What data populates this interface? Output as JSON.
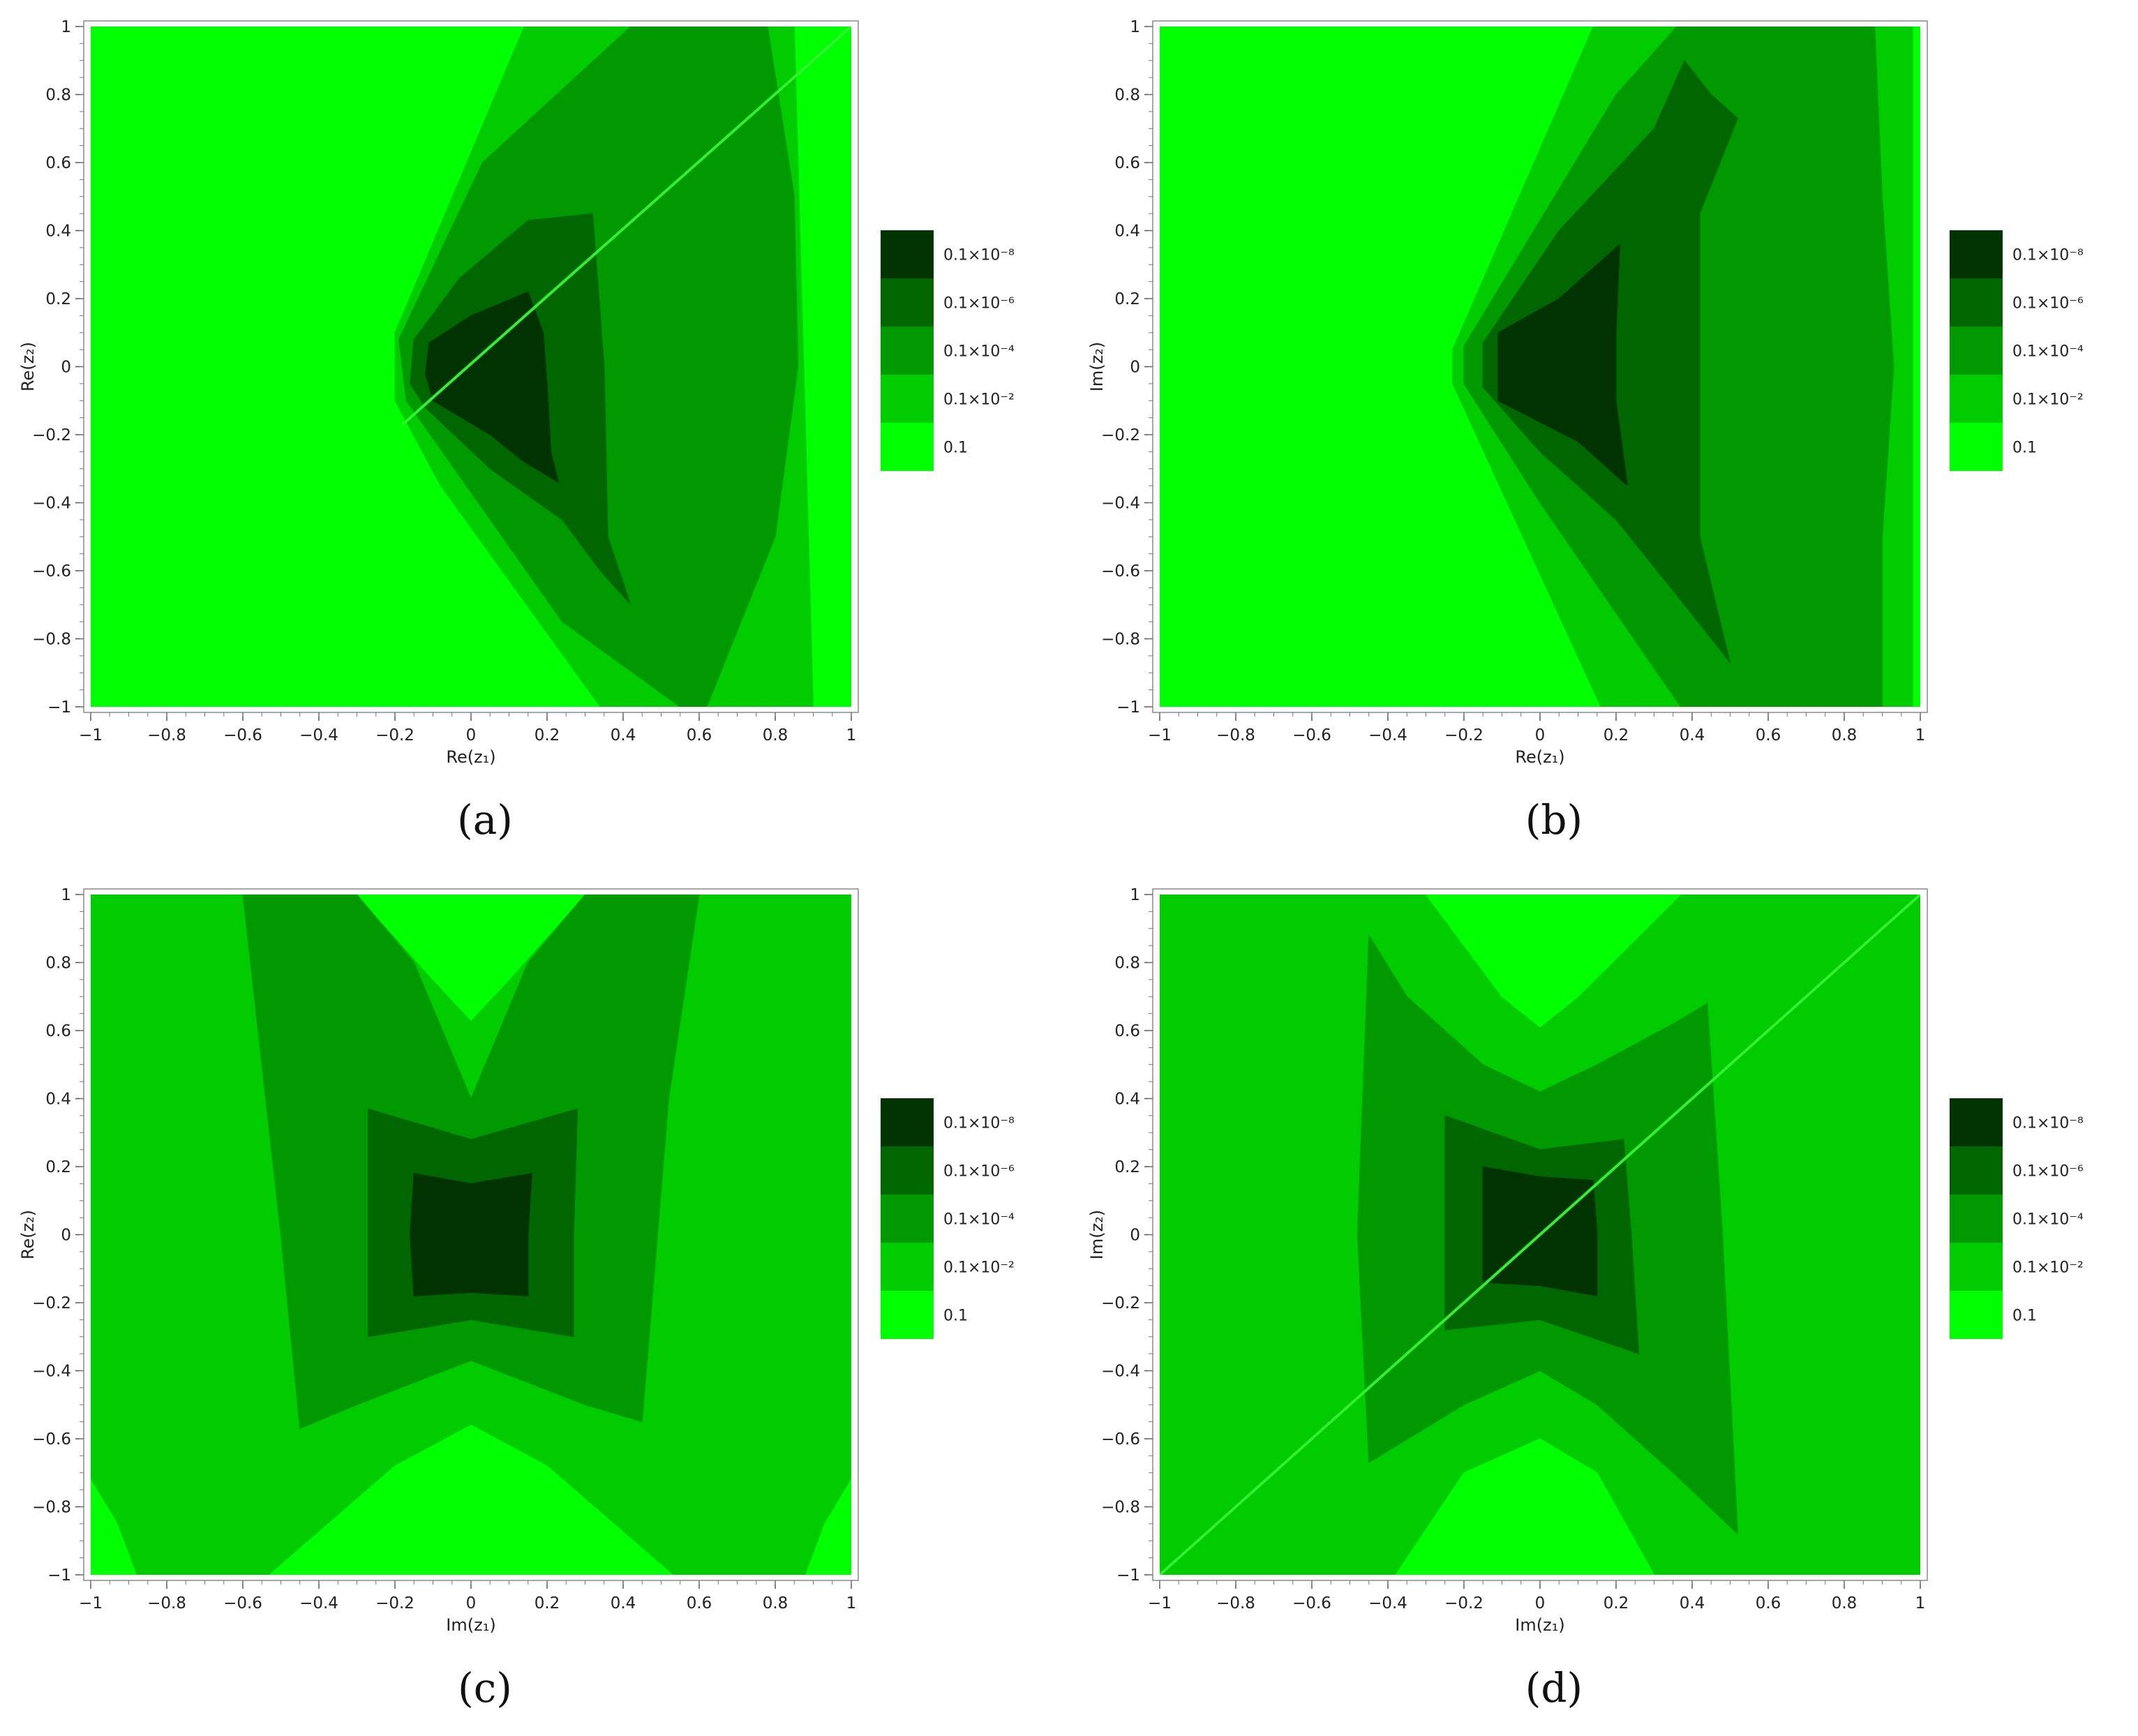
{
  "level_colors": [
    "#00ff00",
    "#00cc00",
    "#009900",
    "#006600",
    "#003300"
  ],
  "legend": {
    "items": [
      {
        "label": "0.1×10⁻⁸",
        "color": "#003300"
      },
      {
        "label": "0.1×10⁻⁶",
        "color": "#006600"
      },
      {
        "label": "0.1×10⁻⁴",
        "color": "#009900"
      },
      {
        "label": "0.1×10⁻²",
        "color": "#00cc00"
      },
      {
        "label": "0.1",
        "color": "#00ff00"
      }
    ]
  },
  "chart_data": [
    {
      "type": "heatmap",
      "caption": "(a)",
      "xlabel": "Re(z₁)",
      "ylabel": "Re(z₂)",
      "xlim": [
        -1,
        1
      ],
      "ylim": [
        -1,
        1
      ],
      "xticks": [
        "−1",
        "−0.8",
        "−0.6",
        "−0.4",
        "−0.2",
        "0",
        "0.2",
        "0.4",
        "0.6",
        "0.8",
        "1"
      ],
      "yticks": [
        "−1",
        "−0.8",
        "−0.6",
        "−0.4",
        "−0.2",
        "0",
        "0.2",
        "0.4",
        "0.6",
        "0.8",
        "1"
      ],
      "background_level": 0,
      "diagonal_line": {
        "from": [
          -0.18,
          -0.17
        ],
        "to": [
          1,
          1
        ]
      },
      "regions": [
        {
          "level": 1,
          "points": [
            [
              -0.2,
              0.1
            ],
            [
              0.14,
              1
            ],
            [
              0.85,
              1
            ],
            [
              0.9,
              -1
            ],
            [
              0.34,
              -1
            ],
            [
              -0.08,
              -0.35
            ],
            [
              -0.2,
              -0.1
            ]
          ]
        },
        {
          "level": 2,
          "points": [
            [
              -0.19,
              0.08
            ],
            [
              0.03,
              0.6
            ],
            [
              0.42,
              1
            ],
            [
              0.78,
              1
            ],
            [
              0.85,
              0.5
            ],
            [
              0.86,
              0
            ],
            [
              0.8,
              -0.5
            ],
            [
              0.62,
              -1
            ],
            [
              0.55,
              -1
            ],
            [
              0.24,
              -0.75
            ],
            [
              -0.17,
              -0.1
            ]
          ]
        },
        {
          "level": 3,
          "points": [
            [
              -0.15,
              0.08
            ],
            [
              -0.03,
              0.26
            ],
            [
              0.15,
              0.43
            ],
            [
              0.32,
              0.45
            ],
            [
              0.35,
              0
            ],
            [
              0.36,
              -0.5
            ],
            [
              0.42,
              -0.7
            ],
            [
              0.34,
              -0.6
            ],
            [
              0.24,
              -0.45
            ],
            [
              0.05,
              -0.3
            ],
            [
              -0.12,
              -0.12
            ],
            [
              -0.16,
              -0.05
            ]
          ]
        },
        {
          "level": 4,
          "points": [
            [
              -0.11,
              0.07
            ],
            [
              0.0,
              0.15
            ],
            [
              0.15,
              0.22
            ],
            [
              0.19,
              0.1
            ],
            [
              0.2,
              -0.05
            ],
            [
              0.21,
              -0.25
            ],
            [
              0.23,
              -0.34
            ],
            [
              0.14,
              -0.28
            ],
            [
              0.05,
              -0.2
            ],
            [
              -0.1,
              -0.1
            ],
            [
              -0.12,
              -0.02
            ]
          ]
        }
      ]
    },
    {
      "type": "heatmap",
      "caption": "(b)",
      "xlabel": "Re(z₁)",
      "ylabel": "Im(z₂)",
      "xlim": [
        -1,
        1
      ],
      "ylim": [
        -1,
        1
      ],
      "xticks": [
        "−1",
        "−0.8",
        "−0.6",
        "−0.4",
        "−0.2",
        "0",
        "0.2",
        "0.4",
        "0.6",
        "0.8",
        "1"
      ],
      "yticks": [
        "−1",
        "−0.8",
        "−0.6",
        "−0.4",
        "−0.2",
        "0",
        "0.2",
        "0.4",
        "0.6",
        "0.8",
        "1"
      ],
      "background_level": 0,
      "diagonal_line": null,
      "regions": [
        {
          "level": 1,
          "points": [
            [
              -0.23,
              0.05
            ],
            [
              0.14,
              1
            ],
            [
              0.98,
              1
            ],
            [
              0.98,
              -1
            ],
            [
              0.16,
              -1
            ],
            [
              -0.23,
              -0.05
            ]
          ]
        },
        {
          "level": 2,
          "points": [
            [
              -0.2,
              0.06
            ],
            [
              0.2,
              0.8
            ],
            [
              0.36,
              1
            ],
            [
              0.88,
              1
            ],
            [
              0.9,
              0.5
            ],
            [
              0.93,
              0
            ],
            [
              0.9,
              -0.5
            ],
            [
              0.9,
              -1
            ],
            [
              0.37,
              -1
            ],
            [
              0.0,
              -0.4
            ],
            [
              -0.2,
              -0.05
            ]
          ]
        },
        {
          "level": 3,
          "points": [
            [
              -0.15,
              0.07
            ],
            [
              0.05,
              0.4
            ],
            [
              0.3,
              0.7
            ],
            [
              0.38,
              0.9
            ],
            [
              0.45,
              0.8
            ],
            [
              0.52,
              0.73
            ],
            [
              0.42,
              0.45
            ],
            [
              0.42,
              0
            ],
            [
              0.42,
              -0.5
            ],
            [
              0.5,
              -0.87
            ],
            [
              0.38,
              -0.7
            ],
            [
              0.2,
              -0.45
            ],
            [
              0.0,
              -0.25
            ],
            [
              -0.15,
              -0.06
            ]
          ]
        },
        {
          "level": 4,
          "points": [
            [
              -0.11,
              0.1
            ],
            [
              0.05,
              0.2
            ],
            [
              0.21,
              0.36
            ],
            [
              0.2,
              0.1
            ],
            [
              0.2,
              -0.1
            ],
            [
              0.23,
              -0.35
            ],
            [
              0.1,
              -0.22
            ],
            [
              -0.11,
              -0.1
            ]
          ]
        }
      ]
    },
    {
      "type": "heatmap",
      "caption": "(c)",
      "xlabel": "Im(z₁)",
      "ylabel": "Re(z₂)",
      "xlim": [
        -1,
        1
      ],
      "ylim": [
        -1,
        1
      ],
      "xticks": [
        "−1",
        "−0.8",
        "−0.6",
        "−0.4",
        "−0.2",
        "0",
        "0.2",
        "0.4",
        "0.6",
        "0.8",
        "1"
      ],
      "yticks": [
        "−1",
        "−0.8",
        "−0.6",
        "−0.4",
        "−0.2",
        "0",
        "0.2",
        "0.4",
        "0.6",
        "0.8",
        "1"
      ],
      "background_level": 1,
      "diagonal_line": null,
      "regions": [
        {
          "level": 0,
          "points": [
            [
              -0.3,
              1
            ],
            [
              -0.1,
              0.75
            ],
            [
              0.0,
              0.63
            ],
            [
              0.1,
              0.75
            ],
            [
              0.3,
              1
            ]
          ]
        },
        {
          "level": 0,
          "points": [
            [
              -0.53,
              -1
            ],
            [
              -0.2,
              -0.68
            ],
            [
              0.0,
              -0.56
            ],
            [
              0.2,
              -0.68
            ],
            [
              0.53,
              -1
            ]
          ]
        },
        {
          "level": 0,
          "points": [
            [
              -1,
              -0.72
            ],
            [
              -0.93,
              -0.85
            ],
            [
              -0.88,
              -1
            ],
            [
              -1,
              -1
            ]
          ]
        },
        {
          "level": 0,
          "points": [
            [
              1,
              -0.72
            ],
            [
              0.93,
              -0.85
            ],
            [
              0.88,
              -1
            ],
            [
              1,
              -1
            ]
          ]
        },
        {
          "level": 2,
          "points": [
            [
              -0.6,
              1
            ],
            [
              -0.3,
              1
            ],
            [
              -0.15,
              0.8
            ],
            [
              0.0,
              0.4
            ],
            [
              0.15,
              0.8
            ],
            [
              0.3,
              1
            ],
            [
              0.6,
              1
            ],
            [
              0.52,
              0.4
            ],
            [
              0.45,
              -0.55
            ],
            [
              0.3,
              -0.5
            ],
            [
              0.0,
              -0.37
            ],
            [
              -0.3,
              -0.5
            ],
            [
              -0.45,
              -0.57
            ],
            [
              -0.5,
              0
            ]
          ]
        },
        {
          "level": 3,
          "points": [
            [
              -0.27,
              0.37
            ],
            [
              0.0,
              0.28
            ],
            [
              0.28,
              0.37
            ],
            [
              0.27,
              0
            ],
            [
              0.27,
              -0.3
            ],
            [
              0.0,
              -0.25
            ],
            [
              -0.27,
              -0.3
            ],
            [
              -0.27,
              0
            ]
          ]
        },
        {
          "level": 4,
          "points": [
            [
              -0.15,
              0.18
            ],
            [
              0.0,
              0.15
            ],
            [
              0.16,
              0.18
            ],
            [
              0.15,
              0
            ],
            [
              0.15,
              -0.18
            ],
            [
              0.0,
              -0.17
            ],
            [
              -0.15,
              -0.18
            ],
            [
              -0.16,
              0
            ]
          ]
        }
      ]
    },
    {
      "type": "heatmap",
      "caption": "(d)",
      "xlabel": "Im(z₁)",
      "ylabel": "Im(z₂)",
      "xlim": [
        -1,
        1
      ],
      "ylim": [
        -1,
        1
      ],
      "xticks": [
        "−1",
        "−0.8",
        "−0.6",
        "−0.4",
        "−0.2",
        "0",
        "0.2",
        "0.4",
        "0.6",
        "0.8",
        "1"
      ],
      "yticks": [
        "−1",
        "−0.8",
        "−0.6",
        "−0.4",
        "−0.2",
        "0",
        "0.2",
        "0.4",
        "0.6",
        "0.8",
        "1"
      ],
      "background_level": 1,
      "diagonal_line": {
        "from": [
          -1,
          -1
        ],
        "to": [
          1,
          1
        ]
      },
      "regions": [
        {
          "level": 0,
          "points": [
            [
              -0.3,
              1
            ],
            [
              -0.1,
              0.7
            ],
            [
              0.0,
              0.61
            ],
            [
              0.1,
              0.7
            ],
            [
              0.37,
              1
            ]
          ]
        },
        {
          "level": 0,
          "points": [
            [
              -0.38,
              -1
            ],
            [
              -0.2,
              -0.7
            ],
            [
              0.0,
              -0.6
            ],
            [
              0.15,
              -0.7
            ],
            [
              0.3,
              -1
            ]
          ]
        },
        {
          "level": 2,
          "points": [
            [
              -0.45,
              0.88
            ],
            [
              -0.35,
              0.7
            ],
            [
              -0.15,
              0.5
            ],
            [
              0.0,
              0.42
            ],
            [
              0.15,
              0.5
            ],
            [
              0.35,
              0.62
            ],
            [
              0.44,
              0.68
            ],
            [
              0.48,
              0
            ],
            [
              0.52,
              -0.88
            ],
            [
              0.35,
              -0.7
            ],
            [
              0.15,
              -0.5
            ],
            [
              0.0,
              -0.4
            ],
            [
              -0.2,
              -0.5
            ],
            [
              -0.45,
              -0.67
            ],
            [
              -0.48,
              0
            ]
          ]
        },
        {
          "level": 3,
          "points": [
            [
              -0.25,
              0.35
            ],
            [
              0.0,
              0.25
            ],
            [
              0.22,
              0.28
            ],
            [
              0.24,
              0
            ],
            [
              0.26,
              -0.35
            ],
            [
              0.0,
              -0.25
            ],
            [
              -0.25,
              -0.28
            ],
            [
              -0.25,
              0
            ]
          ]
        },
        {
          "level": 4,
          "points": [
            [
              -0.15,
              0.2
            ],
            [
              0.0,
              0.17
            ],
            [
              0.14,
              0.16
            ],
            [
              0.15,
              0
            ],
            [
              0.15,
              -0.18
            ],
            [
              0.0,
              -0.15
            ],
            [
              -0.15,
              -0.14
            ],
            [
              -0.15,
              0
            ]
          ]
        }
      ]
    }
  ]
}
